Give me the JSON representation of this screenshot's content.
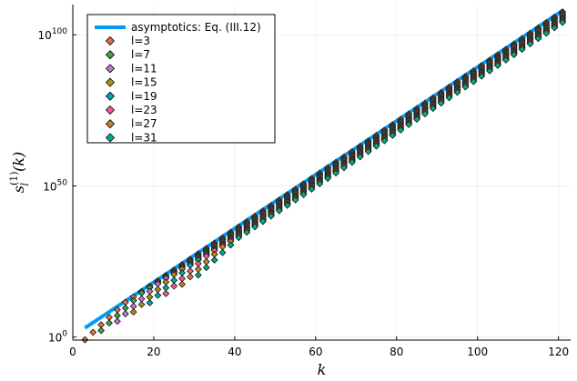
{
  "chart_data": {
    "type": "scatter",
    "title": "",
    "xlabel": "k",
    "ylabel_main": "s",
    "ylabel_sup": "(1)",
    "ylabel_sub": "l",
    "ylabel_tail": "(k)",
    "xlim": [
      0,
      123
    ],
    "ylim_log10": [
      -1,
      110
    ],
    "y_scale": "log10",
    "grid": true,
    "legend_position": "top-left",
    "x_ticks": [
      0,
      20,
      40,
      60,
      80,
      100,
      120
    ],
    "x_tick_labels": [
      "0",
      "20",
      "40",
      "60",
      "80",
      "100",
      "120"
    ],
    "y_ticks_log10": [
      0,
      50,
      100
    ],
    "y_tick_base": "10",
    "y_tick_exponents": [
      "0",
      "50",
      "100"
    ],
    "line_series": {
      "name": "asymptotics: Eq. (III.12)",
      "color": "#009af9",
      "x_start": 3,
      "x_end": 121,
      "log10_y_start": 3,
      "log10_y_end": 108
    },
    "marker_series": [
      {
        "name": "l=3",
        "l": 3,
        "color": "#e26f46",
        "x": [
          3,
          7,
          11,
          15,
          19,
          23,
          27,
          31,
          35,
          39,
          43,
          47,
          51,
          55,
          59,
          63,
          67,
          71,
          75,
          79,
          83,
          87,
          91,
          95,
          99,
          103,
          107,
          111,
          115,
          119,
          121
        ],
        "log10_y_x": "see offsets"
      },
      {
        "name": "l=7",
        "l": 7,
        "color": "#3da44d"
      },
      {
        "name": "l=11",
        "l": 11,
        "color": "#c271d2"
      },
      {
        "name": "l=15",
        "l": 15,
        "color": "#ac8d18"
      },
      {
        "name": "l=19",
        "l": 19,
        "color": "#00a9ad"
      },
      {
        "name": "l=23",
        "l": 23,
        "color": "#ed5d92"
      },
      {
        "name": "l=27",
        "l": 27,
        "color": "#c68125"
      },
      {
        "name": "l=31",
        "l": 31,
        "color": "#00a98d"
      }
    ],
    "marker_k_values": [
      3,
      5,
      7,
      9,
      11,
      13,
      15,
      17,
      19,
      21,
      23,
      25,
      27,
      29,
      31,
      33,
      35,
      37,
      39,
      41,
      43,
      45,
      47,
      49,
      51,
      53,
      55,
      57,
      59,
      61,
      63,
      65,
      67,
      69,
      71,
      73,
      75,
      77,
      79,
      81,
      83,
      85,
      87,
      89,
      91,
      93,
      95,
      97,
      99,
      101,
      103,
      105,
      107,
      109,
      111,
      113,
      115,
      117,
      119,
      121
    ],
    "marker_log10_offsets": [
      0.4,
      0.9,
      1.4,
      1.9,
      2.4,
      2.9,
      3.4,
      3.9
    ],
    "marker_onset_k": [
      3,
      7,
      11,
      15,
      19,
      23,
      27,
      31
    ]
  }
}
